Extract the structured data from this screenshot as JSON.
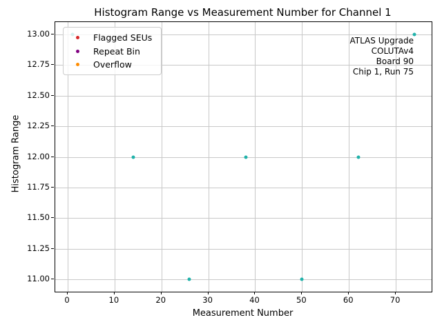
{
  "chart_data": {
    "type": "scatter",
    "title": "Histogram Range vs Measurement Number for Channel 1",
    "xlabel": "Measurement Number",
    "ylabel": "Histogram Range",
    "xlim": [
      -2.65,
      77.65
    ],
    "ylim": [
      10.9,
      13.1
    ],
    "xticks": [
      0,
      10,
      20,
      30,
      40,
      50,
      60,
      70
    ],
    "yticks": [
      11.0,
      11.25,
      11.5,
      11.75,
      12.0,
      12.25,
      12.5,
      12.75,
      13.0
    ],
    "ytick_labels": [
      "11.00",
      "11.25",
      "11.50",
      "11.75",
      "12.00",
      "12.25",
      "12.50",
      "12.75",
      "13.00"
    ],
    "grid": true,
    "grid_color": "#c8c8c8",
    "series": [
      {
        "name": "Histogram Range",
        "marker": "dot",
        "color": "#20b2aa",
        "x": [
          1,
          14,
          26,
          38,
          50,
          62,
          74
        ],
        "y": [
          13,
          12,
          11,
          12,
          11,
          12,
          13
        ]
      }
    ],
    "legend": {
      "position": "upper-left",
      "entries": [
        {
          "label": "Flagged SEUs",
          "color": "#d62728"
        },
        {
          "label": "Repeat Bin",
          "color": "#800080"
        },
        {
          "label": "Overflow",
          "color": "#ff8c00"
        }
      ]
    },
    "annotation": {
      "align": "right",
      "lines": [
        "ATLAS Upgrade",
        "COLUTAv4",
        "Board 90",
        "Chip 1, Run 75"
      ]
    }
  }
}
